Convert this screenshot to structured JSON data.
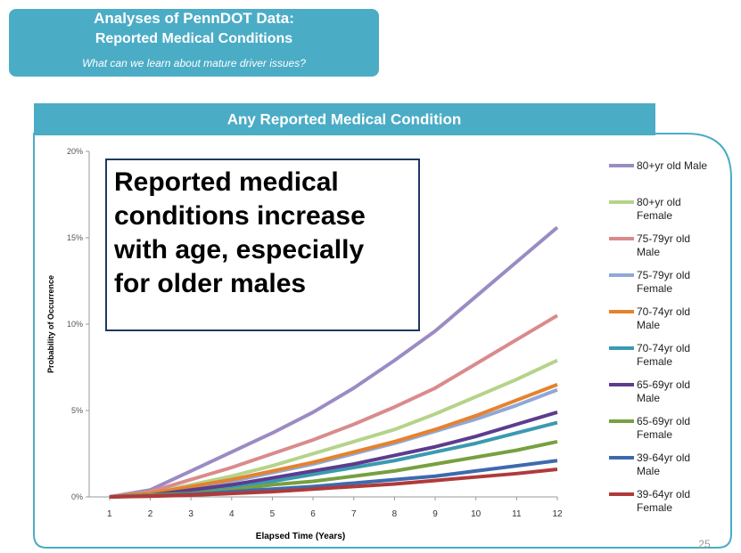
{
  "header": {
    "title": "Analyses of PennDOT Data:",
    "subtitle": "Reported Medical Conditions",
    "tagline": "What can we learn about mature driver issues?"
  },
  "page_number": "25",
  "chart_data": {
    "type": "line",
    "title": "Any Reported Medical Condition",
    "xlabel": "Elapsed Time (Years)",
    "ylabel": "Probability of Occurrence",
    "annotation_lines": [
      "Reported medical",
      "conditions increase",
      "with age, especially",
      "for older males"
    ],
    "x": [
      1,
      2,
      3,
      4,
      5,
      6,
      7,
      8,
      9,
      10,
      11,
      12
    ],
    "xlim": [
      0.5,
      12
    ],
    "xticks": [
      1,
      2,
      3,
      4,
      5,
      6,
      7,
      8,
      9,
      10,
      11,
      12
    ],
    "ylim": [
      0,
      20
    ],
    "yticks": [
      {
        "value": 0,
        "label": "0%"
      },
      {
        "value": 5,
        "label": "5%"
      },
      {
        "value": 10,
        "label": "10%"
      },
      {
        "value": 15,
        "label": "15%"
      },
      {
        "value": 20,
        "label": "20%"
      }
    ],
    "legend": "right",
    "series": [
      {
        "name": "80+yr old Male",
        "color": "#9b8bc4",
        "values": [
          0,
          0.4,
          1.5,
          2.6,
          3.7,
          4.9,
          6.3,
          7.9,
          9.6,
          11.6,
          13.6,
          15.6
        ]
      },
      {
        "name": "80+yr old Female",
        "color": "#b5d38a",
        "values": [
          0,
          0.2,
          0.7,
          1.2,
          1.8,
          2.5,
          3.2,
          3.9,
          4.8,
          5.8,
          6.8,
          7.9
        ]
      },
      {
        "name": "75-79yr old Male",
        "color": "#d98b8b",
        "values": [
          0,
          0.3,
          1.0,
          1.7,
          2.5,
          3.3,
          4.2,
          5.2,
          6.3,
          7.7,
          9.1,
          10.5
        ]
      },
      {
        "name": "75-79yr old Female",
        "color": "#8fa8d8",
        "values": [
          0,
          0.2,
          0.5,
          0.9,
          1.4,
          1.9,
          2.5,
          3.1,
          3.8,
          4.5,
          5.3,
          6.2
        ]
      },
      {
        "name": "70-74yr old Male",
        "color": "#e5822f",
        "values": [
          0,
          0.2,
          0.6,
          1.0,
          1.5,
          2.0,
          2.6,
          3.2,
          3.9,
          4.7,
          5.6,
          6.5
        ]
      },
      {
        "name": "70-74yr old Female",
        "color": "#3a9ab0",
        "values": [
          0,
          0.1,
          0.3,
          0.6,
          0.9,
          1.3,
          1.7,
          2.1,
          2.6,
          3.1,
          3.7,
          4.3
        ]
      },
      {
        "name": "65-69yr old Male",
        "color": "#5d3c8c",
        "values": [
          0,
          0.1,
          0.4,
          0.7,
          1.1,
          1.5,
          1.9,
          2.4,
          2.9,
          3.5,
          4.2,
          4.9
        ]
      },
      {
        "name": "65-69yr old Female",
        "color": "#77a040",
        "values": [
          0,
          0.1,
          0.2,
          0.4,
          0.7,
          0.9,
          1.2,
          1.5,
          1.9,
          2.3,
          2.7,
          3.2
        ]
      },
      {
        "name": "39-64yr old Male",
        "color": "#3e6aad",
        "values": [
          0,
          0.05,
          0.15,
          0.3,
          0.45,
          0.6,
          0.8,
          1.0,
          1.2,
          1.5,
          1.8,
          2.1
        ]
      },
      {
        "name": "39-64yr old Female",
        "color": "#b03a3a",
        "values": [
          0,
          0.04,
          0.1,
          0.2,
          0.3,
          0.45,
          0.6,
          0.75,
          0.95,
          1.15,
          1.35,
          1.6
        ]
      }
    ]
  }
}
